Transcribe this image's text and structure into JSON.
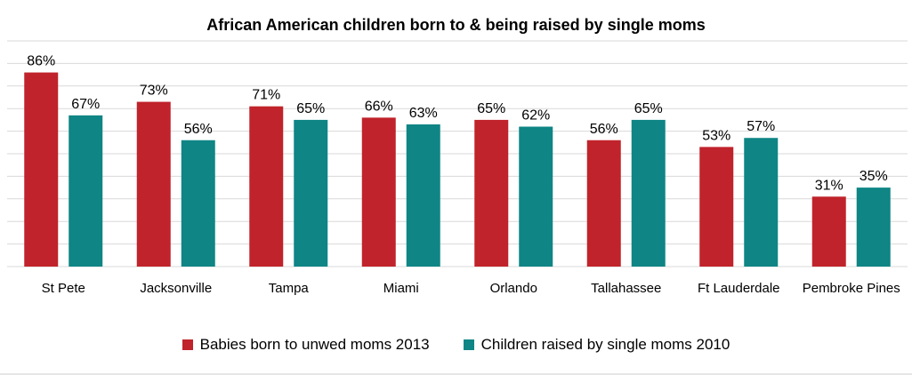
{
  "chart_data": {
    "type": "bar",
    "title": "African American children born to & being raised by single moms",
    "categories": [
      "St Pete",
      "Jacksonville",
      "Tampa",
      "Miami",
      "Orlando",
      "Tallahassee",
      "Ft Lauderdale",
      "Pembroke Pines"
    ],
    "series": [
      {
        "name": "Babies born to unwed moms 2013",
        "color": "#c0232b",
        "values": [
          86,
          73,
          71,
          66,
          65,
          56,
          53,
          31
        ],
        "labels": [
          "86%",
          "73%",
          "71%",
          "66%",
          "65%",
          "56%",
          "53%",
          "31%"
        ]
      },
      {
        "name": "Children raised by single moms 2010",
        "color": "#0f8585",
        "values": [
          67,
          56,
          65,
          63,
          62,
          65,
          57,
          35
        ],
        "labels": [
          "67%",
          "56%",
          "65%",
          "63%",
          "62%",
          "65%",
          "57%",
          "35%"
        ]
      }
    ],
    "xlabel": "",
    "ylabel": "",
    "ylim": [
      0,
      100
    ],
    "grid": true,
    "legend_position": "bottom",
    "gridline_color": "#d9d9d9"
  }
}
